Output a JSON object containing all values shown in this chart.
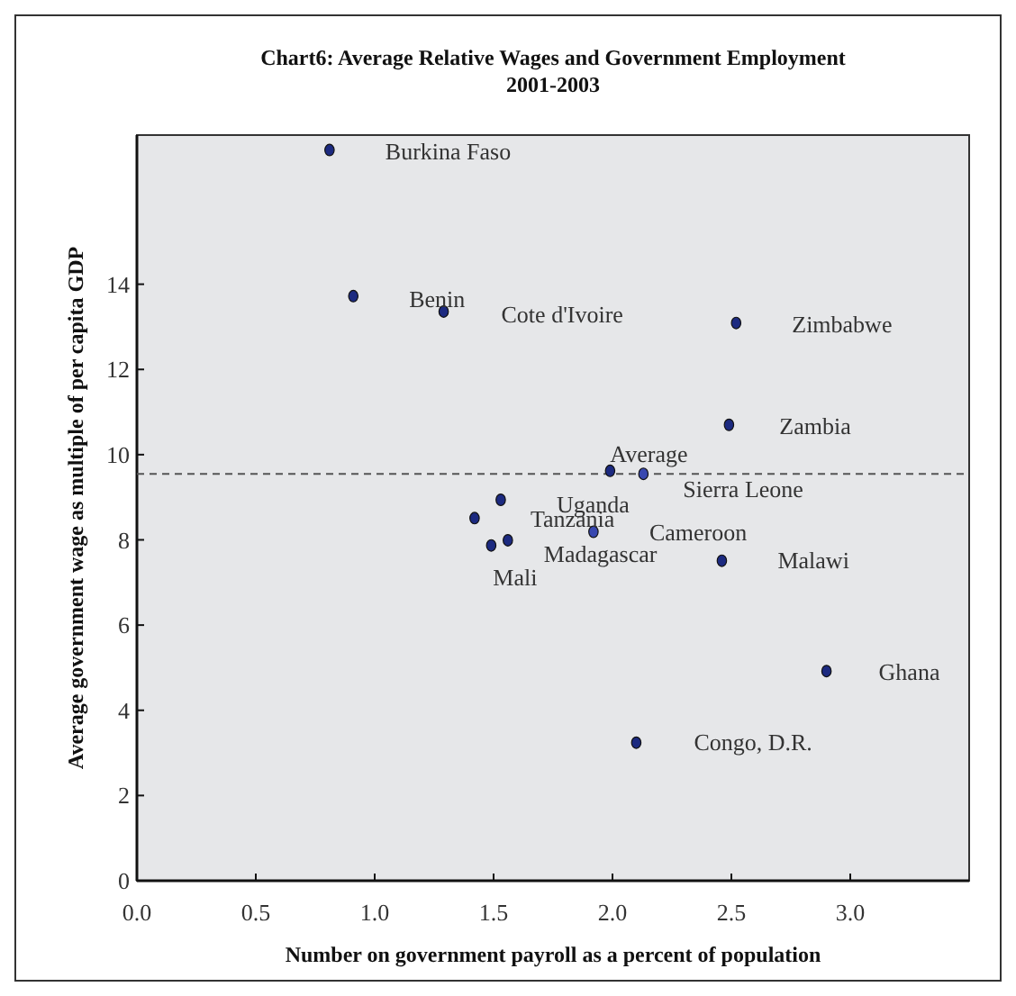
{
  "chart_data": {
    "type": "scatter",
    "title": "Chart6: Average Relative Wages and Government Employment\n2001-2003",
    "xlabel": "Number on government payroll as a percent of population",
    "ylabel": "Average government wage as multiple of per capita GDP",
    "xlim": [
      0,
      3.5
    ],
    "ylim": [
      0,
      17.5
    ],
    "xticks": [
      {
        "value": 0,
        "label": "0.0"
      },
      0.5,
      {
        "value": 1,
        "label": "1.0"
      },
      1.5,
      {
        "value": 2,
        "label": "2.0"
      },
      2.5,
      {
        "value": 3,
        "label": "3.0"
      }
    ],
    "yticks": [
      0,
      2,
      4,
      6,
      8,
      10,
      12,
      14
    ],
    "grid": false,
    "marker": "circle",
    "ref_lines": [
      {
        "axis": "y",
        "value": 9.55,
        "color": "#555555",
        "line_style": "dashed"
      }
    ],
    "series": [
      {
        "x": [
          0.81,
          0.91,
          1.29,
          2.52,
          2.49,
          1.99,
          2.13,
          1.53,
          1.42,
          1.56,
          1.49,
          1.92,
          2.46,
          2.9,
          2.1
        ],
        "values": [
          17.15,
          13.72,
          13.36,
          13.09,
          10.7,
          9.62,
          9.55,
          8.94,
          8.51,
          7.99,
          7.87,
          8.19,
          7.51,
          4.92,
          3.24
        ],
        "colors": [
          "#1c2a80",
          "#1c2a80",
          "#1c2a80",
          "#1c2a80",
          "#1c2a80",
          "#1c2a80",
          "#3848b0",
          "#1c2a80",
          "#1c2a80",
          "#1c2a80",
          "#1c2a80",
          "#3848b0",
          "#1c2a80",
          "#1c2a80",
          "#1c2a80"
        ]
      }
    ],
    "annotations": [
      {
        "text": "Burkina Faso",
        "x": 0.81,
        "y": 17.15
      },
      {
        "text": "Benin",
        "x": 0.91,
        "y": 13.72
      },
      {
        "text": "Cote d'Ivoire",
        "x": 1.29,
        "y": 13.36
      },
      {
        "text": "Zimbabwe",
        "x": 2.52,
        "y": 13.09
      },
      {
        "text": "Zambia",
        "x": 2.49,
        "y": 10.7
      },
      {
        "text": "Average",
        "x": 1.99,
        "y": 9.62
      },
      {
        "text": "Sierra Leone",
        "x": 2.13,
        "y": 9.55
      },
      {
        "text": "Uganda",
        "x": 1.53,
        "y": 8.94
      },
      {
        "text": "Tanzania",
        "x": 1.42,
        "y": 8.51
      },
      {
        "text": "Madagascar",
        "x": 1.56,
        "y": 7.99
      },
      {
        "text": "Mali",
        "x": 1.49,
        "y": 7.87
      },
      {
        "text": "Cameroon",
        "x": 1.92,
        "y": 8.19
      },
      {
        "text": "Malawi",
        "x": 2.46,
        "y": 7.51
      },
      {
        "text": "Ghana",
        "x": 2.9,
        "y": 4.92
      },
      {
        "text": "Congo, D.R.",
        "x": 2.1,
        "y": 3.24
      }
    ]
  }
}
